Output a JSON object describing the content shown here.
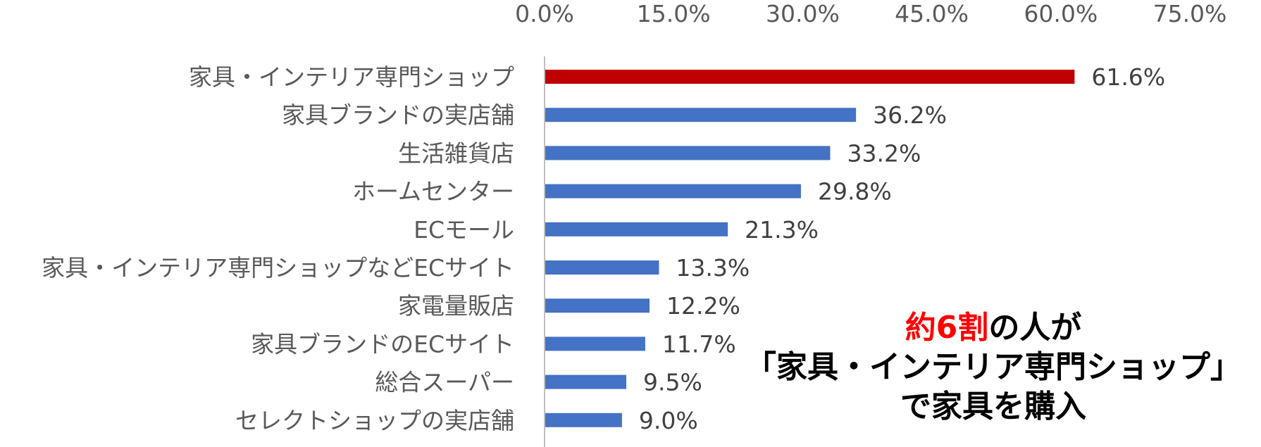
{
  "chart_data": {
    "type": "bar",
    "orientation": "horizontal",
    "xlim": [
      0,
      75
    ],
    "ticks": [
      "0.0%",
      "15.0%",
      "30.0%",
      "45.0%",
      "60.0%",
      "75.0%"
    ],
    "tick_values": [
      0,
      15,
      30,
      45,
      60,
      75
    ],
    "axis_position": "top",
    "grid": false,
    "categories": [
      "家具・インテリア専門ショップ",
      "家具ブランドの実店舗",
      "生活雑貨店",
      "ホームセンター",
      "ECモール",
      "家具・インテリア専門ショップなどECサイト",
      "家電量販店",
      "家具ブランドのECサイト",
      "総合スーパー",
      "セレクトショップの実店舗"
    ],
    "values": [
      61.6,
      36.2,
      33.2,
      29.8,
      21.3,
      13.3,
      12.2,
      11.7,
      9.5,
      9.0
    ],
    "value_labels": [
      "61.6%",
      "36.2%",
      "33.2%",
      "29.8%",
      "21.3%",
      "13.3%",
      "12.2%",
      "11.7%",
      "9.5%",
      "9.0%"
    ],
    "colors": [
      "#c00000",
      "#4472c4",
      "#4472c4",
      "#4472c4",
      "#4472c4",
      "#4472c4",
      "#4472c4",
      "#4472c4",
      "#4472c4",
      "#4472c4"
    ],
    "axis_line_color": "#bfbfbf"
  },
  "annotation": {
    "line1_highlight": "約6割",
    "line1_rest": "の人が",
    "line2": "「家具・インテリア専門ショップ」",
    "line3": "で家具を購入",
    "highlight_color": "#ff0000"
  }
}
